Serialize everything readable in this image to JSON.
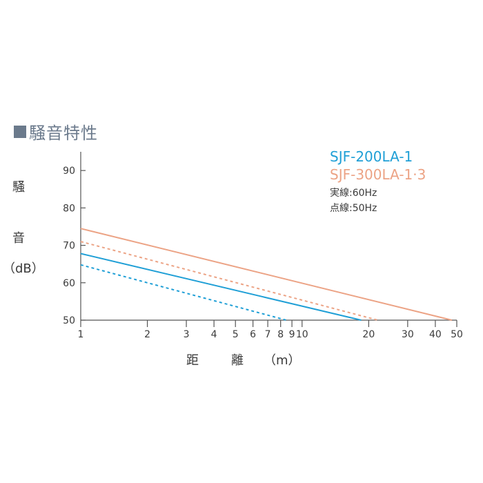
{
  "heading": "騒音特性",
  "ylabel": {
    "char1": "騒",
    "char2": "音",
    "unit": "（dB）"
  },
  "xlabel": {
    "char1": "距",
    "char2": "離",
    "unit": "（m）"
  },
  "legend": {
    "series1": "SJF-200LA-1",
    "series2": "SJF-300LA-1·3",
    "solid_note": "実線:60Hz",
    "dashed_note": "点線:50Hz"
  },
  "colors": {
    "blue": "#1f9fd6",
    "orange": "#eca385",
    "axis": "#555555",
    "heading": "#6b7a8c"
  },
  "chart_data": {
    "type": "line",
    "xscale": "log",
    "xlim": [
      1,
      50
    ],
    "ylim": [
      50,
      95
    ],
    "xticks": [
      1,
      2,
      3,
      4,
      5,
      6,
      7,
      8,
      9,
      10,
      20,
      30,
      40,
      50
    ],
    "xtick_labels": [
      "1",
      "2",
      "3",
      "4",
      "5",
      "6",
      "7",
      "8",
      "9",
      "10",
      "20",
      "30",
      "40",
      "50"
    ],
    "yticks": [
      50,
      60,
      70,
      80,
      90
    ],
    "series": [
      {
        "name": "SJF-200LA-1 60Hz",
        "color": "#1f9fd6",
        "dash": false,
        "x": [
          1,
          18.5
        ],
        "y": [
          67.8,
          50
        ]
      },
      {
        "name": "SJF-200LA-1 50Hz",
        "color": "#1f9fd6",
        "dash": true,
        "x": [
          1,
          8.5
        ],
        "y": [
          64.8,
          50
        ]
      },
      {
        "name": "SJF-300LA-1·3 60Hz",
        "color": "#eca385",
        "dash": false,
        "x": [
          1,
          47.5
        ],
        "y": [
          74.5,
          50
        ]
      },
      {
        "name": "SJF-300LA-1·3 50Hz",
        "color": "#eca385",
        "dash": true,
        "x": [
          1,
          22
        ],
        "y": [
          71,
          50
        ]
      }
    ]
  }
}
